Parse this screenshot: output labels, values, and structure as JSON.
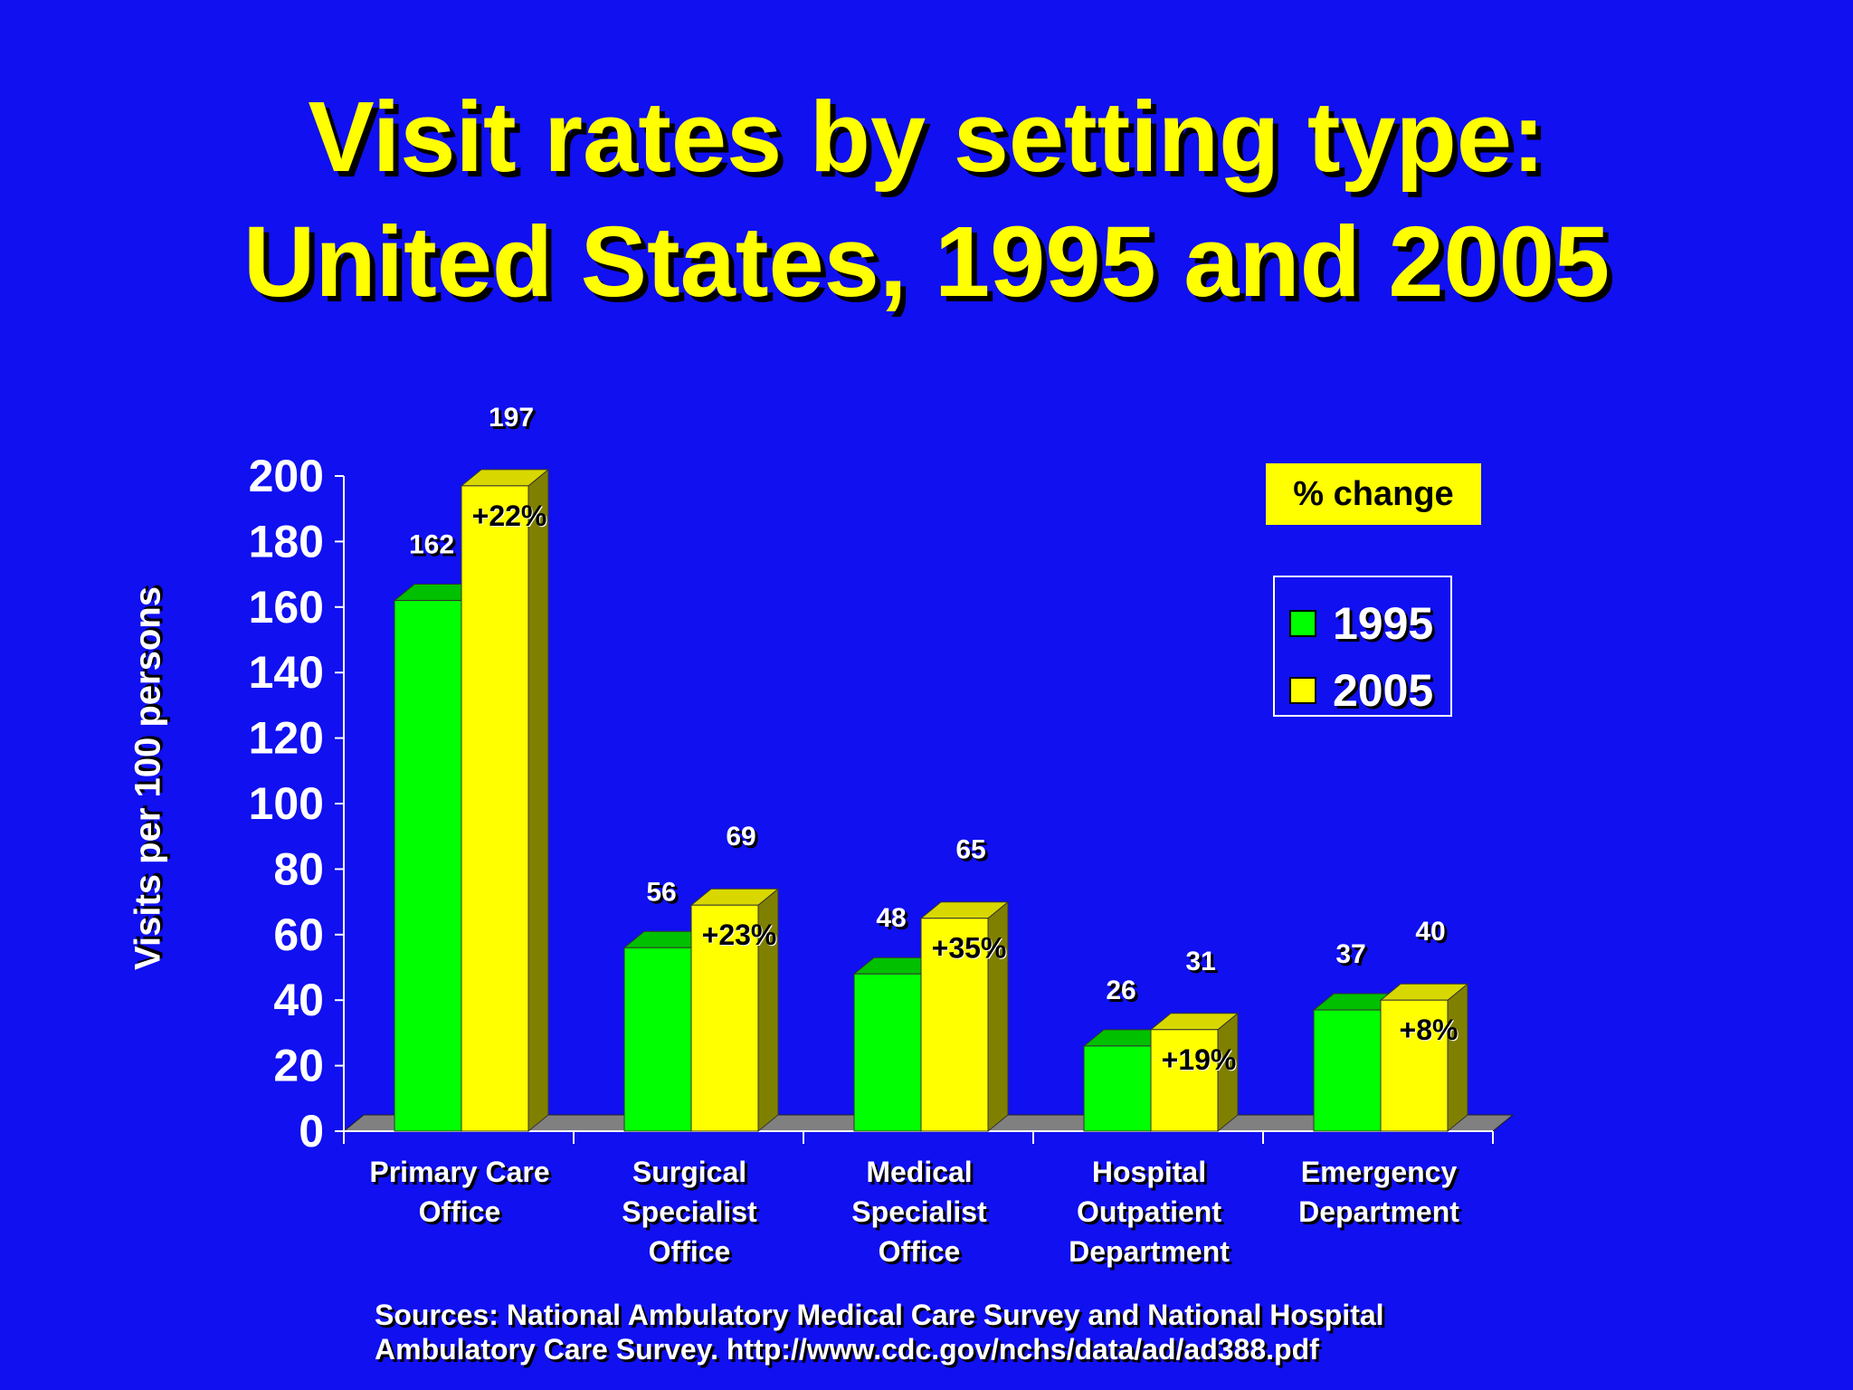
{
  "title_line_1": "Visit rates by setting type:",
  "title_line_2": "United States, 1995 and 2005",
  "colors": {
    "background": "#1010F0",
    "title": "#FFFF00",
    "series_1995": "#00FF00",
    "series_2005": "#FFFF00"
  },
  "change_box_label": "% change",
  "source_line_1": "Sources:  National Ambulatory Medical Care Survey and National Hospital",
  "source_line_2": "Ambulatory Care Survey.  http://www.cdc.gov/nchs/data/ad/ad388.pdf",
  "chart_data": {
    "type": "bar",
    "ylabel": "Visits per 100 persons",
    "ylim": [
      0,
      200
    ],
    "yticks": [
      0,
      20,
      40,
      60,
      80,
      100,
      120,
      140,
      160,
      180,
      200
    ],
    "categories": [
      [
        "Primary Care",
        "Office"
      ],
      [
        "Surgical",
        "Specialist",
        "Office"
      ],
      [
        "Medical",
        "Specialist",
        "Office"
      ],
      [
        "Hospital",
        "Outpatient",
        "Department"
      ],
      [
        "Emergency",
        "Department"
      ]
    ],
    "series": [
      {
        "name": "1995",
        "values": [
          162,
          56,
          48,
          26,
          37
        ]
      },
      {
        "name": "2005",
        "values": [
          197,
          69,
          65,
          31,
          40
        ]
      }
    ],
    "percent_change": [
      "+22%",
      "+23%",
      "+35%",
      "+19%",
      "+8%"
    ],
    "legend_position": "right"
  }
}
